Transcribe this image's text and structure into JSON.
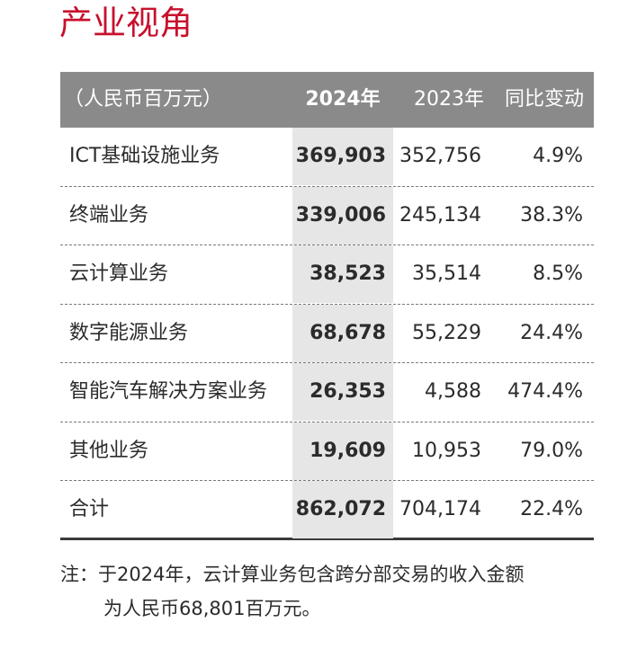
{
  "section_title": "产业视角",
  "table": {
    "header": {
      "unit": "（人民币百万元）",
      "year_2024": "2024年",
      "year_2023": "2023年",
      "change": "同比变动"
    },
    "rows": [
      {
        "name": "ICT基础设施业务",
        "y2024": "369,903",
        "y2023": "352,756",
        "change": "4.9%"
      },
      {
        "name": "终端业务",
        "y2024": "339,006",
        "y2023": "245,134",
        "change": "38.3%"
      },
      {
        "name": "云计算业务",
        "y2024": "38,523",
        "y2023": "35,514",
        "change": "8.5%"
      },
      {
        "name": "数字能源业务",
        "y2024": "68,678",
        "y2023": "55,229",
        "change": "24.4%"
      },
      {
        "name": "智能汽车解决方案业务",
        "y2024": "26,353",
        "y2023": "4,588",
        "change": "474.4%"
      },
      {
        "name": "其他业务",
        "y2024": "19,609",
        "y2023": "10,953",
        "change": "79.0%"
      },
      {
        "name": "合计",
        "y2024": "862,072",
        "y2023": "704,174",
        "change": "22.4%"
      }
    ]
  },
  "note": {
    "line1": "注：于2024年，云计算业务包含跨分部交易的收入金额",
    "line2": "为人民币68,801百万元。"
  },
  "colors": {
    "title": "#c8102e",
    "header_bg": "#8a8a8a",
    "highlight_col": "#e6e6e6"
  }
}
